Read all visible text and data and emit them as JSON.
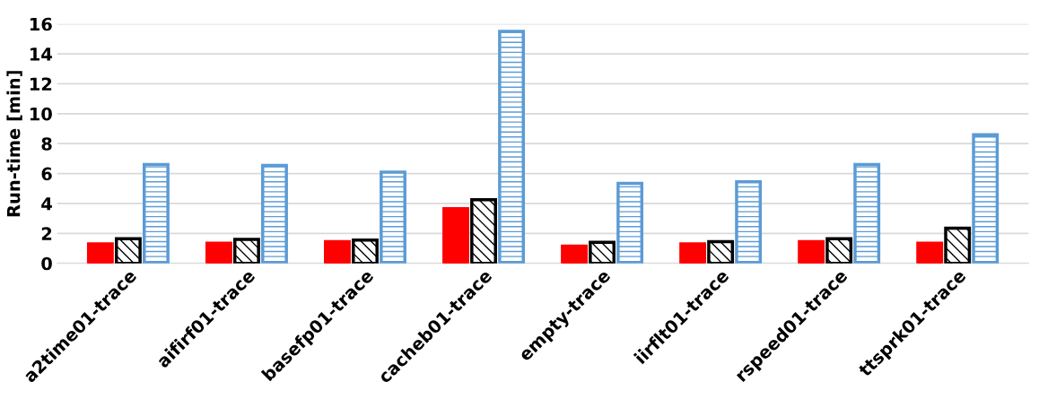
{
  "chart_data": {
    "type": "bar",
    "ylabel": "Run-time [min]",
    "categories": [
      "a2time01-trace",
      "aifirf01-trace",
      "basefp01-trace",
      "cacheb01-trace",
      "empty-trace",
      "iirflt01-trace",
      "rspeed01-trace",
      "ttsprk01-trace"
    ],
    "series": [
      {
        "color": "#ff0000",
        "values": [
          1.3,
          1.35,
          1.45,
          3.65,
          1.15,
          1.3,
          1.45,
          1.35
        ]
      },
      {
        "color": "#000000",
        "values": [
          1.65,
          1.6,
          1.55,
          4.25,
          1.4,
          1.45,
          1.65,
          2.35
        ]
      },
      {
        "color": "#5b9bd5",
        "values": [
          6.6,
          6.55,
          6.1,
          15.5,
          5.35,
          5.45,
          6.6,
          8.6
        ]
      }
    ],
    "ylim": [
      0,
      16
    ],
    "yticks": [
      0,
      2,
      4,
      6,
      8,
      10,
      12,
      14,
      16
    ],
    "grid": "y"
  }
}
